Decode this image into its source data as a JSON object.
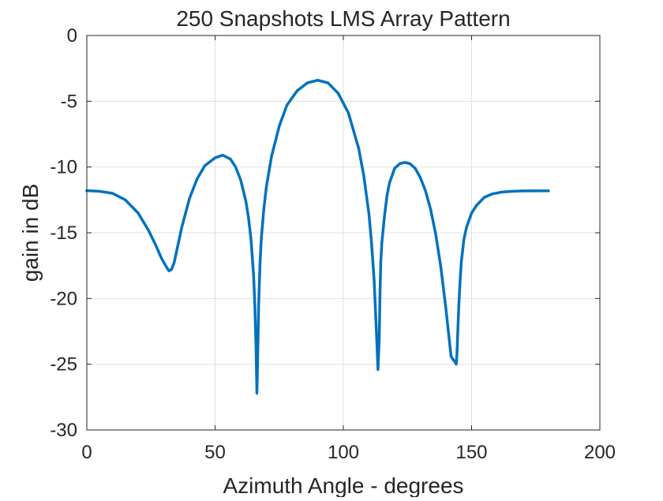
{
  "chart_data": {
    "type": "line",
    "title": "250 Snapshots LMS Array Pattern",
    "xlabel": "Azimuth Angle - degrees",
    "ylabel": "gain in dB",
    "xlim": [
      0,
      200
    ],
    "ylim": [
      -30,
      0
    ],
    "xticks": [
      0,
      50,
      100,
      150,
      200
    ],
    "yticks": [
      0,
      -5,
      -10,
      -15,
      -20,
      -25,
      -30
    ],
    "xtick_labels": [
      "0",
      "50",
      "100",
      "150",
      "200"
    ],
    "ytick_labels": [
      "0",
      "-5",
      "-10",
      "-15",
      "-20",
      "-25",
      "-30"
    ],
    "grid": true,
    "series": [
      {
        "color": "#0072BD",
        "x": [
          0,
          5,
          10,
          15,
          20,
          24,
          27,
          29,
          31,
          32,
          33,
          34,
          35,
          37,
          40,
          43,
          46,
          50,
          53,
          56,
          58,
          60,
          62,
          63,
          64,
          65,
          65.5,
          66,
          66.3,
          66.5,
          67,
          67.5,
          68,
          69,
          70,
          72,
          75,
          78,
          82,
          86,
          90,
          94,
          98,
          102,
          106,
          108,
          110,
          111,
          112,
          113,
          113.5,
          114,
          114.3,
          114.6,
          115,
          116,
          117,
          118,
          120,
          122,
          124,
          126,
          128,
          130,
          132,
          134,
          136,
          138,
          140,
          141,
          142,
          143,
          143.5,
          144,
          144.3,
          144.6,
          145,
          145.5,
          146,
          147,
          148,
          150,
          152,
          155,
          158,
          162,
          166,
          170,
          175,
          180
        ],
        "y": [
          -11.8,
          -11.85,
          -12,
          -12.5,
          -13.5,
          -14.8,
          -16,
          -16.9,
          -17.6,
          -17.9,
          -17.8,
          -17.3,
          -16.4,
          -14.6,
          -12.4,
          -10.9,
          -9.9,
          -9.3,
          -9.1,
          -9.4,
          -10,
          -11,
          -12.6,
          -13.8,
          -15.5,
          -18.2,
          -20.5,
          -24,
          -27.2,
          -25.5,
          -20.4,
          -17.4,
          -15.5,
          -13.2,
          -11.5,
          -9.2,
          -6.9,
          -5.3,
          -4.2,
          -3.6,
          -3.4,
          -3.6,
          -4.4,
          -5.9,
          -8.6,
          -10.7,
          -13.6,
          -15.8,
          -18.6,
          -23,
          -25.4,
          -23,
          -19.5,
          -17.2,
          -15.8,
          -13.8,
          -12.2,
          -11.2,
          -10.1,
          -9.75,
          -9.65,
          -9.75,
          -10.1,
          -10.8,
          -11.8,
          -13.2,
          -15.1,
          -17.6,
          -20.8,
          -22.6,
          -24.4,
          -24.7,
          -24.8,
          -25,
          -24.2,
          -22.6,
          -20.6,
          -18.7,
          -17.2,
          -15.5,
          -14.6,
          -13.5,
          -12.9,
          -12.3,
          -12.05,
          -11.9,
          -11.85,
          -11.82,
          -11.81,
          -11.81
        ]
      }
    ]
  }
}
